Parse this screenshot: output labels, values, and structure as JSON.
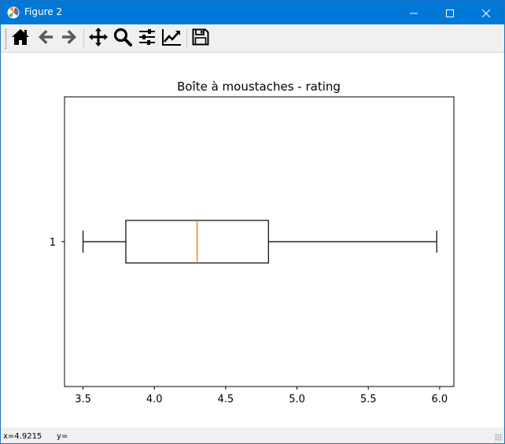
{
  "window": {
    "title": "Figure 2",
    "controls": {
      "minimize_icon": "minimize-icon",
      "maximize_icon": "maximize-icon",
      "close_icon": "close-icon"
    }
  },
  "toolbar": {
    "buttons": [
      {
        "name": "home",
        "icon": "home-icon"
      },
      {
        "name": "back",
        "icon": "arrow-left-icon"
      },
      {
        "name": "forward",
        "icon": "arrow-right-icon"
      },
      {
        "name": "pan",
        "icon": "move-icon"
      },
      {
        "name": "zoom",
        "icon": "magnifier-icon"
      },
      {
        "name": "configure-subplots",
        "icon": "sliders-icon"
      },
      {
        "name": "edit-axis",
        "icon": "chart-line-icon"
      },
      {
        "name": "save",
        "icon": "floppy-disk-icon"
      }
    ]
  },
  "status": {
    "x_readout": "x=4.9215",
    "y_readout": "y="
  },
  "chart_data": {
    "type": "boxplot",
    "orientation": "horizontal",
    "title": "Boîte à moustaches - rating",
    "xlabel": "",
    "ylabel": "",
    "categories": [
      "1"
    ],
    "xlim": [
      3.37,
      6.1
    ],
    "xticks": [
      3.5,
      4.0,
      4.5,
      5.0,
      5.5,
      6.0
    ],
    "xtick_labels": [
      "3.5",
      "4.0",
      "4.5",
      "5.0",
      "5.5",
      "6.0"
    ],
    "boxes": [
      {
        "label": "1",
        "whisker_low": 3.5,
        "q1": 3.8,
        "median": 4.3,
        "q3": 4.8,
        "whisker_high": 5.98
      }
    ],
    "grid": false,
    "colors": {
      "box": "#000000",
      "median": "#ff7f0e",
      "whisker": "#000000"
    }
  }
}
